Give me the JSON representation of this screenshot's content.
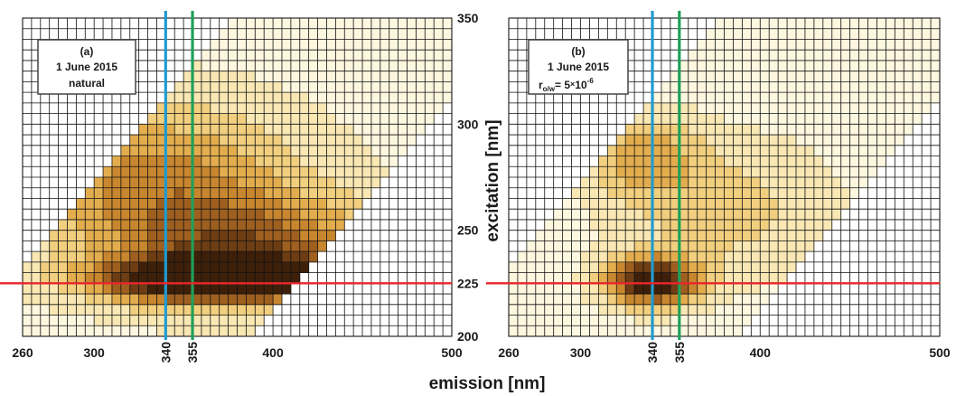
{
  "chart_data": [
    {
      "type": "heatmap",
      "panel_label": "(a)",
      "annotation_lines": [
        "(a)",
        "1 June 2015",
        "natural"
      ],
      "xlim": [
        260,
        500
      ],
      "ylim": [
        200,
        350
      ],
      "x_ticks": [
        "260",
        "300",
        "340",
        "355",
        "400",
        "500"
      ],
      "y_ticks": [
        "350",
        "300",
        "250",
        "225",
        "200"
      ],
      "vertical_markers": [
        {
          "x": 340,
          "color": "#1f9bd1"
        },
        {
          "x": 355,
          "color": "#1fa05a"
        }
      ],
      "horizontal_markers": [
        {
          "y": 225,
          "color": "#e8262c"
        }
      ],
      "valid_band": {
        "lower_offset": 185,
        "upper_offset": 70
      },
      "peaks": [
        {
          "x": 365,
          "y": 227,
          "amplitude": 1.0,
          "sx": 42,
          "sy": 7
        },
        {
          "x": 390,
          "y": 240,
          "amplitude": 0.55,
          "sx": 55,
          "sy": 18
        },
        {
          "x": 335,
          "y": 275,
          "amplitude": 0.45,
          "sx": 55,
          "sy": 25
        }
      ],
      "background_level": 0.08
    },
    {
      "type": "heatmap",
      "panel_label": "(b)",
      "annotation_lines": [
        "(b)",
        "1 June 2015",
        "r",
        "o/w",
        "= 5",
        "×",
        "10",
        "-6"
      ],
      "xlim": [
        260,
        500
      ],
      "ylim": [
        200,
        350
      ],
      "x_ticks": [
        "260",
        "300",
        "340",
        "355",
        "400",
        "500"
      ],
      "vertical_markers": [
        {
          "x": 340,
          "color": "#1f9bd1"
        },
        {
          "x": 355,
          "color": "#1fa05a"
        }
      ],
      "horizontal_markers": [
        {
          "y": 225,
          "color": "#e8262c"
        }
      ],
      "valid_band": {
        "lower_offset": 185,
        "upper_offset": 70
      },
      "peaks": [
        {
          "x": 340,
          "y": 226,
          "amplitude": 0.95,
          "sx": 18,
          "sy": 8
        },
        {
          "x": 335,
          "y": 285,
          "amplitude": 0.35,
          "sx": 22,
          "sy": 14
        },
        {
          "x": 380,
          "y": 260,
          "amplitude": 0.25,
          "sx": 45,
          "sy": 25
        }
      ],
      "background_level": 0.05
    }
  ],
  "axis_titles": {
    "xlabel": "emission   [nm]",
    "ylabel": "excitation   [nm]"
  },
  "colors": {
    "colormap": [
      "#fdf7df",
      "#f9e7b4",
      "#f2cf7e",
      "#e3ad4e",
      "#c8862f",
      "#9f5f1f",
      "#6e3d14",
      "#3e200a"
    ],
    "grid": "#111111",
    "contour": "#2a1a08"
  }
}
